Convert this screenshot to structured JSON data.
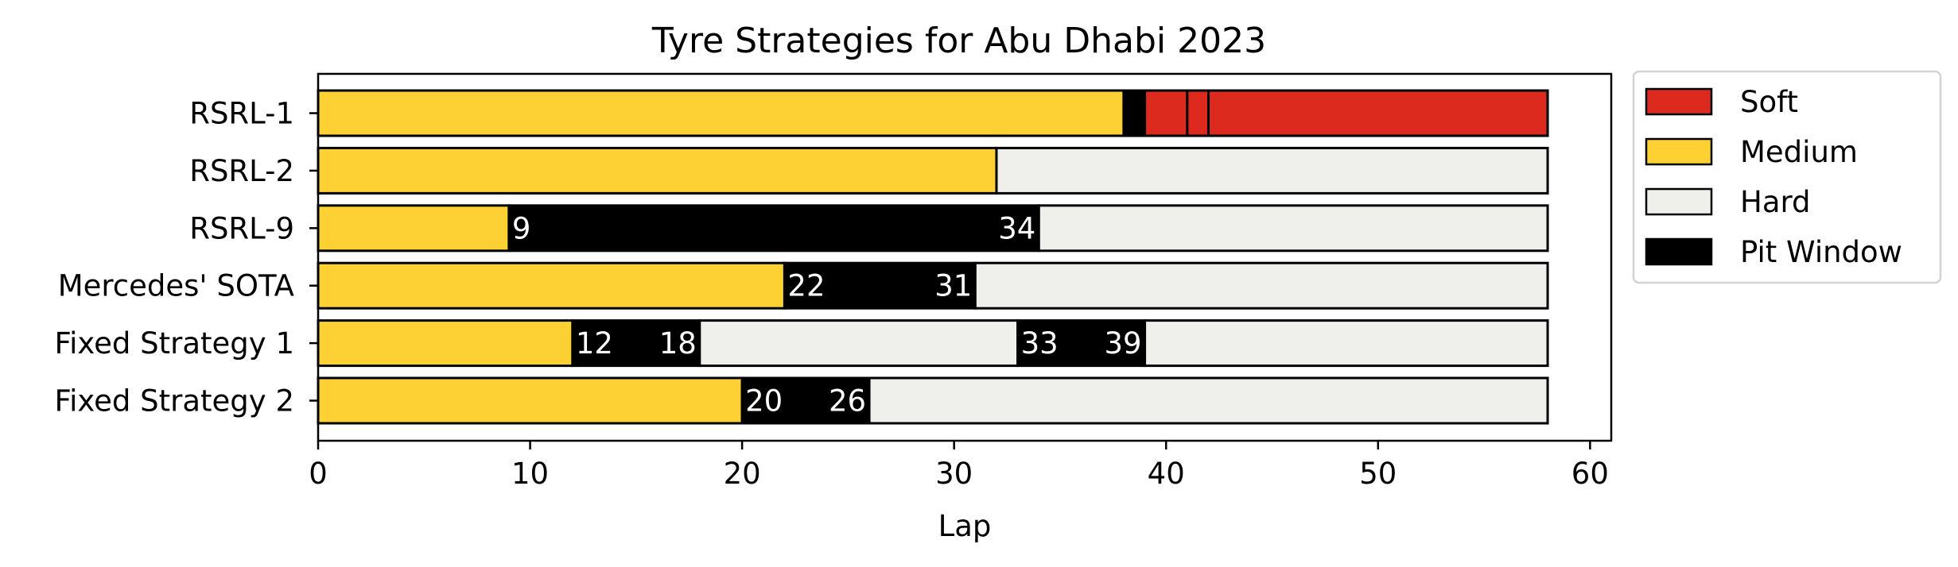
{
  "chart_data": {
    "type": "bar",
    "orientation": "horizontal-stacked",
    "title": "Tyre Strategies for Abu Dhabi 2023",
    "xlabel": "Lap",
    "ylabel": "",
    "xlim": [
      0,
      61
    ],
    "x_ticks": [
      0,
      10,
      20,
      30,
      40,
      50,
      60
    ],
    "grid": false,
    "legend_position": "outside-top-right",
    "colors": {
      "Soft": "#dc2a1f",
      "Medium": "#fdd034",
      "Hard": "#eff0ec",
      "Pit Window": "#000000"
    },
    "legend": [
      "Soft",
      "Medium",
      "Hard",
      "Pit Window"
    ],
    "categories": [
      "RSRL-1",
      "RSRL-2",
      "RSRL-9",
      "Mercedes' SOTA",
      "Fixed Strategy 1",
      "Fixed Strategy 2"
    ],
    "strategies": [
      {
        "name": "RSRL-1",
        "segments": [
          {
            "compound": "Medium",
            "start": 0,
            "end": 38
          },
          {
            "compound": "Pit Window",
            "start": 38,
            "end": 39
          },
          {
            "compound": "Soft",
            "start": 39,
            "end": 41
          },
          {
            "compound": "Soft",
            "start": 41,
            "end": 42
          },
          {
            "compound": "Soft",
            "start": 42,
            "end": 58
          }
        ],
        "labels": []
      },
      {
        "name": "RSRL-2",
        "segments": [
          {
            "compound": "Medium",
            "start": 0,
            "end": 32
          },
          {
            "compound": "Hard",
            "start": 32,
            "end": 58
          }
        ],
        "labels": []
      },
      {
        "name": "RSRL-9",
        "segments": [
          {
            "compound": "Medium",
            "start": 0,
            "end": 9
          },
          {
            "compound": "Pit Window",
            "start": 9,
            "end": 34
          },
          {
            "compound": "Hard",
            "start": 34,
            "end": 58
          }
        ],
        "labels": [
          {
            "text": "9",
            "lap": 9,
            "anchor": "start"
          },
          {
            "text": "34",
            "lap": 34,
            "anchor": "end"
          }
        ]
      },
      {
        "name": "Mercedes' SOTA",
        "segments": [
          {
            "compound": "Medium",
            "start": 0,
            "end": 22
          },
          {
            "compound": "Pit Window",
            "start": 22,
            "end": 31
          },
          {
            "compound": "Hard",
            "start": 31,
            "end": 58
          }
        ],
        "labels": [
          {
            "text": "22",
            "lap": 22,
            "anchor": "start"
          },
          {
            "text": "31",
            "lap": 31,
            "anchor": "end"
          }
        ]
      },
      {
        "name": "Fixed Strategy 1",
        "segments": [
          {
            "compound": "Medium",
            "start": 0,
            "end": 12
          },
          {
            "compound": "Pit Window",
            "start": 12,
            "end": 18
          },
          {
            "compound": "Hard",
            "start": 18,
            "end": 33
          },
          {
            "compound": "Pit Window",
            "start": 33,
            "end": 39
          },
          {
            "compound": "Hard",
            "start": 39,
            "end": 58
          }
        ],
        "labels": [
          {
            "text": "12",
            "lap": 12,
            "anchor": "start"
          },
          {
            "text": "18",
            "lap": 18,
            "anchor": "end"
          },
          {
            "text": "33",
            "lap": 33,
            "anchor": "start"
          },
          {
            "text": "39",
            "lap": 39,
            "anchor": "end"
          }
        ]
      },
      {
        "name": "Fixed Strategy 2",
        "segments": [
          {
            "compound": "Medium",
            "start": 0,
            "end": 20
          },
          {
            "compound": "Pit Window",
            "start": 20,
            "end": 26
          },
          {
            "compound": "Hard",
            "start": 26,
            "end": 58
          }
        ],
        "labels": [
          {
            "text": "20",
            "lap": 20,
            "anchor": "start"
          },
          {
            "text": "26",
            "lap": 26,
            "anchor": "end"
          }
        ]
      }
    ]
  }
}
